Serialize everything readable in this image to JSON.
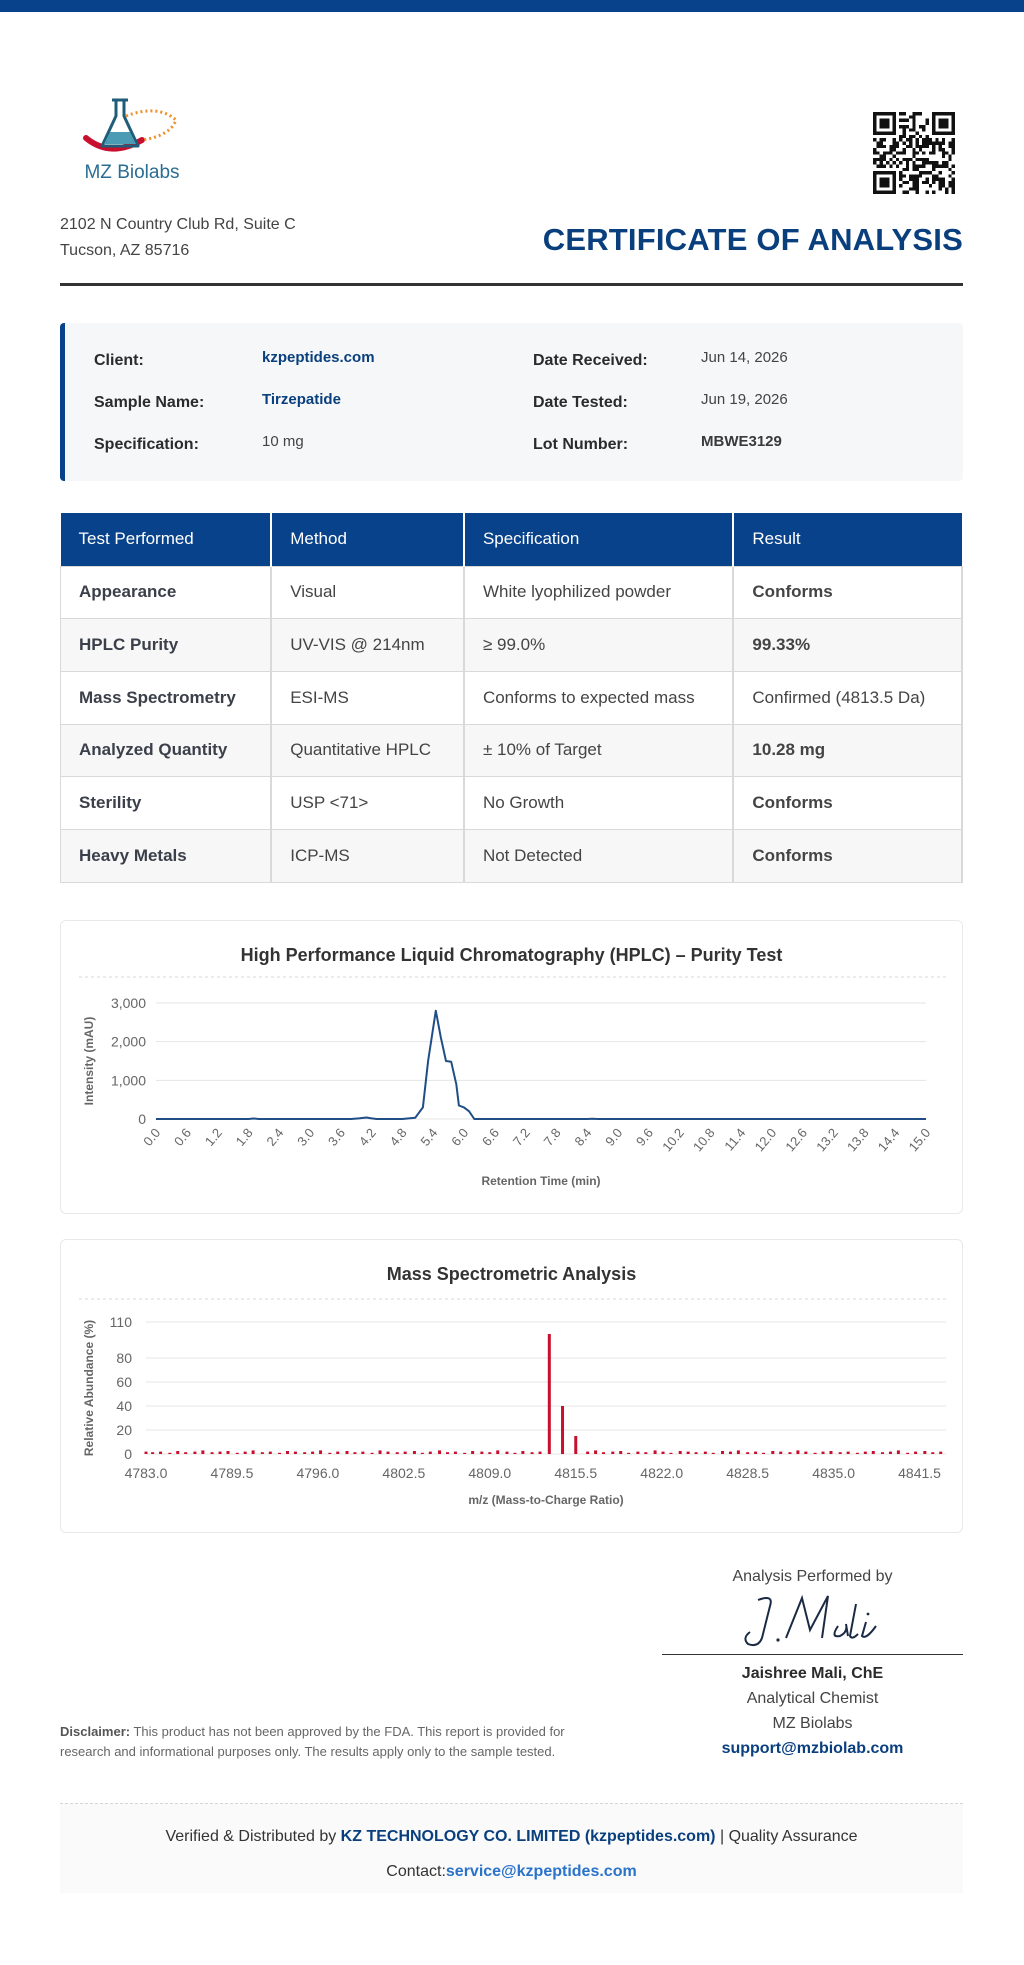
{
  "lab": {
    "name": "MZ Biolabs",
    "address_line1": "2102 N Country Club Rd, Suite C",
    "address_line2": "Tucson, AZ 85716"
  },
  "document": {
    "title": "CERTIFICATE OF ANALYSIS"
  },
  "info": {
    "client_label": "Client:",
    "client_value": "kzpeptides.com",
    "sample_label": "Sample Name:",
    "sample_value": "Tirzepatide",
    "spec_label": "Specification:",
    "spec_value": "10 mg",
    "received_label": "Date Received:",
    "received_value": "Jun 14, 2026",
    "tested_label": "Date Tested:",
    "tested_value": "Jun 19, 2026",
    "lot_label": "Lot Number:",
    "lot_value": "MBWE3129"
  },
  "tests": {
    "headers": [
      "Test Performed",
      "Method",
      "Specification",
      "Result"
    ],
    "rows": [
      {
        "test": "Appearance",
        "method": "Visual",
        "spec": "White lyophilized powder",
        "result": "Conforms"
      },
      {
        "test": "HPLC Purity",
        "method": "UV-VIS @ 214nm",
        "spec": "≥ 99.0%",
        "result": "99.33%"
      },
      {
        "test": "Mass Spectrometry",
        "method": "ESI-MS",
        "spec": "Conforms to expected mass",
        "result": "Confirmed (4813.5 Da)"
      },
      {
        "test": "Analyzed Quantity",
        "method": "Quantitative HPLC",
        "spec": "± 10% of Target",
        "result": "10.28 mg"
      },
      {
        "test": "Sterility",
        "method": "USP <71>",
        "spec": "No Growth",
        "result": "Conforms"
      },
      {
        "test": "Heavy Metals",
        "method": "ICP-MS",
        "spec": "Not Detected",
        "result": "Conforms"
      }
    ]
  },
  "colors": {
    "brand_blue": "#08428a",
    "pass_green": "#1e9c3a",
    "hplc_line": "#1f4e86",
    "ms_bar": "#c8102e"
  },
  "chart_data": [
    {
      "type": "line",
      "title": "High Performance Liquid Chromatography (HPLC) – Purity Test",
      "xlabel": "Retention Time (min)",
      "ylabel": "Intensity (mAU)",
      "xlim": [
        0,
        15
      ],
      "ylim": [
        0,
        3000
      ],
      "yticks": [
        "0",
        "1,000",
        "2,000",
        "3,000"
      ],
      "xticks": [
        "0.0",
        "0.6",
        "1.2",
        "1.8",
        "2.4",
        "3.0",
        "3.6",
        "4.2",
        "4.8",
        "5.4",
        "6.0",
        "6.6",
        "7.2",
        "7.8",
        "8.4",
        "9.0",
        "9.6",
        "10.2",
        "10.8",
        "11.4",
        "12.0",
        "12.6",
        "13.2",
        "13.8",
        "14.4",
        "15.0"
      ],
      "grid": true,
      "series": [
        {
          "x": [
            0,
            1.8,
            1.9,
            2.0,
            3.8,
            3.95,
            4.1,
            4.2,
            4.3,
            4.8,
            5.05,
            5.2,
            5.3,
            5.45,
            5.55,
            5.65,
            5.75,
            5.85,
            5.9,
            6.0,
            6.1,
            6.2,
            6.4,
            8.4,
            8.5,
            8.6,
            15.0
          ],
          "y": [
            0,
            0,
            12,
            0,
            0,
            15,
            40,
            15,
            0,
            0,
            30,
            300,
            1500,
            2800,
            2100,
            1500,
            1480,
            900,
            350,
            300,
            200,
            0,
            0,
            0,
            8,
            0,
            0
          ]
        }
      ]
    },
    {
      "type": "bar",
      "title": "Mass Spectrometric Analysis",
      "xlabel": "m/z (Mass-to-Charge Ratio)",
      "ylabel": "Relative Abundance (%)",
      "xlim": [
        4783.0,
        4843.5
      ],
      "ylim": [
        0,
        110
      ],
      "yticks": [
        "0",
        "20",
        "40",
        "60",
        "80",
        "110"
      ],
      "xticks": [
        "4783.0",
        "4789.5",
        "4796.0",
        "4802.5",
        "4809.0",
        "4815.5",
        "4822.0",
        "4828.5",
        "4835.0",
        "4841.5"
      ],
      "grid": true,
      "peaks": [
        {
          "x": 4813.5,
          "y": 100
        },
        {
          "x": 4814.5,
          "y": 40
        },
        {
          "x": 4815.5,
          "y": 15
        }
      ],
      "noise": {
        "x": [
          4783.0,
          4783.5,
          4784.1,
          4784.8,
          4785.4,
          4786.0,
          4786.7,
          4787.3,
          4788.0,
          4788.6,
          4789.2,
          4789.9,
          4790.5,
          4791.1,
          4791.8,
          4792.4,
          4793.1,
          4793.7,
          4794.3,
          4795.0,
          4795.6,
          4796.2,
          4796.9,
          4797.5,
          4798.2,
          4798.8,
          4799.4,
          4800.1,
          4800.7,
          4801.3,
          4802.0,
          4802.6,
          4803.3,
          4803.9,
          4804.5,
          4805.2,
          4805.8,
          4806.4,
          4807.1,
          4807.7,
          4808.4,
          4809.0,
          4809.6,
          4810.3,
          4810.9,
          4811.5,
          4812.2,
          4812.8,
          4816.4,
          4817.0,
          4817.6,
          4818.3,
          4818.9,
          4819.5,
          4820.2,
          4820.8,
          4821.5,
          4822.1,
          4822.7,
          4823.4,
          4824.0,
          4824.6,
          4825.3,
          4825.9,
          4826.6,
          4827.2,
          4827.8,
          4828.5,
          4829.1,
          4829.7,
          4830.4,
          4831.0,
          4831.7,
          4832.3,
          4832.9,
          4833.6,
          4834.2,
          4834.8,
          4835.5,
          4836.1,
          4836.8,
          4837.4,
          4838.0,
          4838.7,
          4839.3,
          4839.9,
          4840.6,
          4841.2,
          4841.9,
          4842.5,
          4843.1
        ],
        "y": [
          2,
          1.5,
          2,
          1,
          2.5,
          1.5,
          2,
          3,
          1.5,
          2,
          2.5,
          1,
          2,
          3,
          1.5,
          2,
          1,
          2.5,
          2,
          1.5,
          2,
          3,
          1,
          2,
          2.5,
          1.5,
          2,
          1,
          3,
          2,
          1.5,
          2,
          2.5,
          1,
          2,
          3,
          1.5,
          2,
          1,
          2.5,
          2,
          1.5,
          3,
          2,
          1,
          2.5,
          1.5,
          2,
          2,
          3,
          1.5,
          2,
          2.5,
          1,
          2,
          1.5,
          3,
          2,
          1,
          2.5,
          2,
          1.5,
          2,
          1,
          2.5,
          2,
          3,
          1.5,
          2,
          1,
          2.5,
          2,
          1.5,
          3,
          2,
          1,
          2,
          2.5,
          1.5,
          2,
          1,
          2,
          2.5,
          1.5,
          2,
          3,
          1,
          2,
          2.5,
          1.5,
          2
        ]
      }
    }
  ],
  "signature": {
    "caption": "Analysis Performed by",
    "name": "Jaishree Mali, ChE",
    "role": "Analytical Chemist",
    "org": "MZ Biolabs",
    "email": "support@mzbiolab.com"
  },
  "disclaimer": {
    "label": "Disclaimer:",
    "text": " This product has not been approved by the FDA. This report is provided for research and informational purposes only. The results apply only to the sample tested."
  },
  "footer": {
    "prefix": "Verified & Distributed by ",
    "company": "KZ TECHNOLOGY CO. LIMITED (kzpeptides.com)",
    "suffix": " | Quality Assurance",
    "contact_label": "Contact:",
    "contact_email": "service@kzpeptides.com"
  }
}
